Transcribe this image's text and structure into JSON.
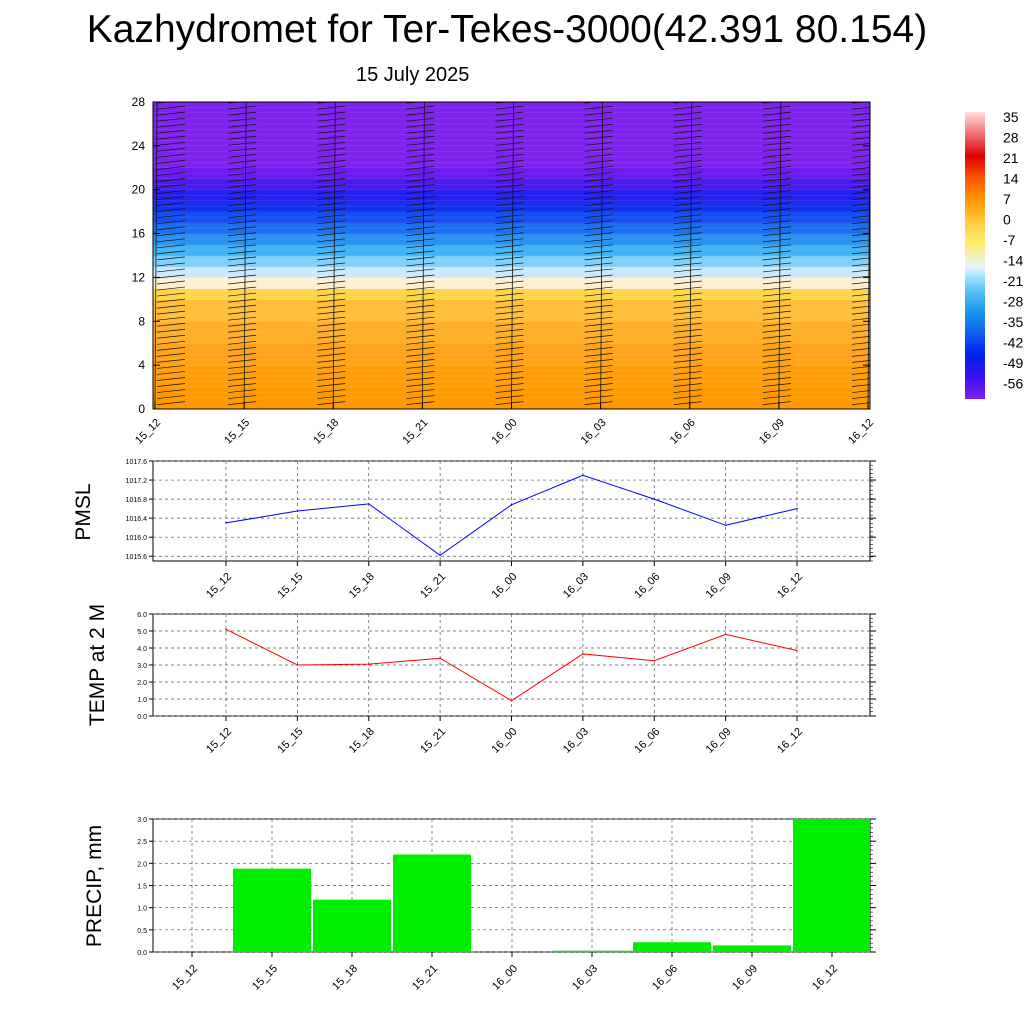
{
  "title": "Kazhydromet for Ter-Tekes-3000(42.391 80.154)",
  "subtitle": "15 July 2025",
  "colors": {
    "pmsl": "#0000ff",
    "temp": "#ff0000",
    "precip": "#00ee00"
  },
  "chart_data": [
    {
      "type": "heatmap",
      "x_labels": [
        "15_12",
        "15_15",
        "15_18",
        "15_21",
        "16_00",
        "16_03",
        "16_06",
        "16_09",
        "16_12"
      ],
      "y_ticks": [
        0,
        4,
        8,
        12,
        16,
        20,
        24,
        28
      ],
      "ylim": [
        0,
        28
      ],
      "colorbar": {
        "labels": [
          "35",
          "28",
          "21",
          "14",
          "7",
          "0",
          "-7",
          "-14",
          "-21",
          "-28",
          "-35",
          "-42",
          "-49",
          "-56"
        ],
        "colors": [
          "#ffe0e0",
          "#f07070",
          "#dd0000",
          "#ff5500",
          "#ff9900",
          "#ffcc40",
          "#ffee70",
          "#e6f5ff",
          "#60c8f8",
          "#1a9aee",
          "#1060ee",
          "#0020ee",
          "#3d10ee",
          "#7f20ee"
        ]
      },
      "field": {
        "levels": [
          0,
          2,
          4,
          6,
          8,
          10,
          11,
          12,
          13,
          14,
          15,
          16,
          17,
          18,
          19,
          20,
          21,
          22,
          28
        ],
        "colors": [
          "#ff9900",
          "#ff9e0a",
          "#ffa41a",
          "#ffaf2a",
          "#ffbf3a",
          "#ffd54a",
          "#fff0d0",
          "#c8eaff",
          "#7fd0fa",
          "#40b4f4",
          "#2a92f0",
          "#1e6ff0",
          "#1450f0",
          "#1432ee",
          "#2620ee",
          "#4a1aee",
          "#6a1cee",
          "#7e22ee",
          "#7e22ee"
        ]
      },
      "barbs": "wind barbs at each time column and level"
    },
    {
      "type": "line",
      "ylabel": "PMSL",
      "x": [
        "15_12",
        "15_15",
        "15_18",
        "15_21",
        "16_00",
        "16_03",
        "16_06",
        "16_09",
        "16_12"
      ],
      "y": [
        1016.3,
        1016.55,
        1016.7,
        1015.62,
        1016.68,
        1017.3,
        1016.8,
        1016.25,
        1016.6
      ],
      "ylim": [
        1015.5,
        1017.6
      ],
      "y_ticks": [
        "1015.6",
        "1016.0",
        "1016.4",
        "1016.8",
        "1017.2",
        "1017.6"
      ],
      "grid": true
    },
    {
      "type": "line",
      "ylabel": "TEMP at 2 M",
      "x": [
        "15_12",
        "15_15",
        "15_18",
        "15_21",
        "16_00",
        "16_03",
        "16_06",
        "16_09",
        "16_12"
      ],
      "y": [
        5.1,
        3.0,
        3.05,
        3.4,
        0.9,
        3.65,
        3.25,
        4.8,
        3.85
      ],
      "ylim": [
        0,
        6
      ],
      "y_ticks": [
        "0.0",
        "1.0",
        "2.0",
        "3.0",
        "4.0",
        "5.0",
        "6.0"
      ],
      "grid": true
    },
    {
      "type": "bar",
      "ylabel": "PRECIP, mm",
      "categories": [
        "15_12",
        "15_15",
        "15_18",
        "15_21",
        "16_00",
        "16_03",
        "16_06",
        "16_09",
        "16_12"
      ],
      "values": [
        0.0,
        1.88,
        1.18,
        2.2,
        0.0,
        0.03,
        0.22,
        0.15,
        3.0
      ],
      "ylim": [
        0,
        3
      ],
      "y_ticks": [
        "0.0",
        "0.5",
        "1.0",
        "1.5",
        "2.0",
        "2.5",
        "3.0"
      ],
      "grid": true
    }
  ]
}
